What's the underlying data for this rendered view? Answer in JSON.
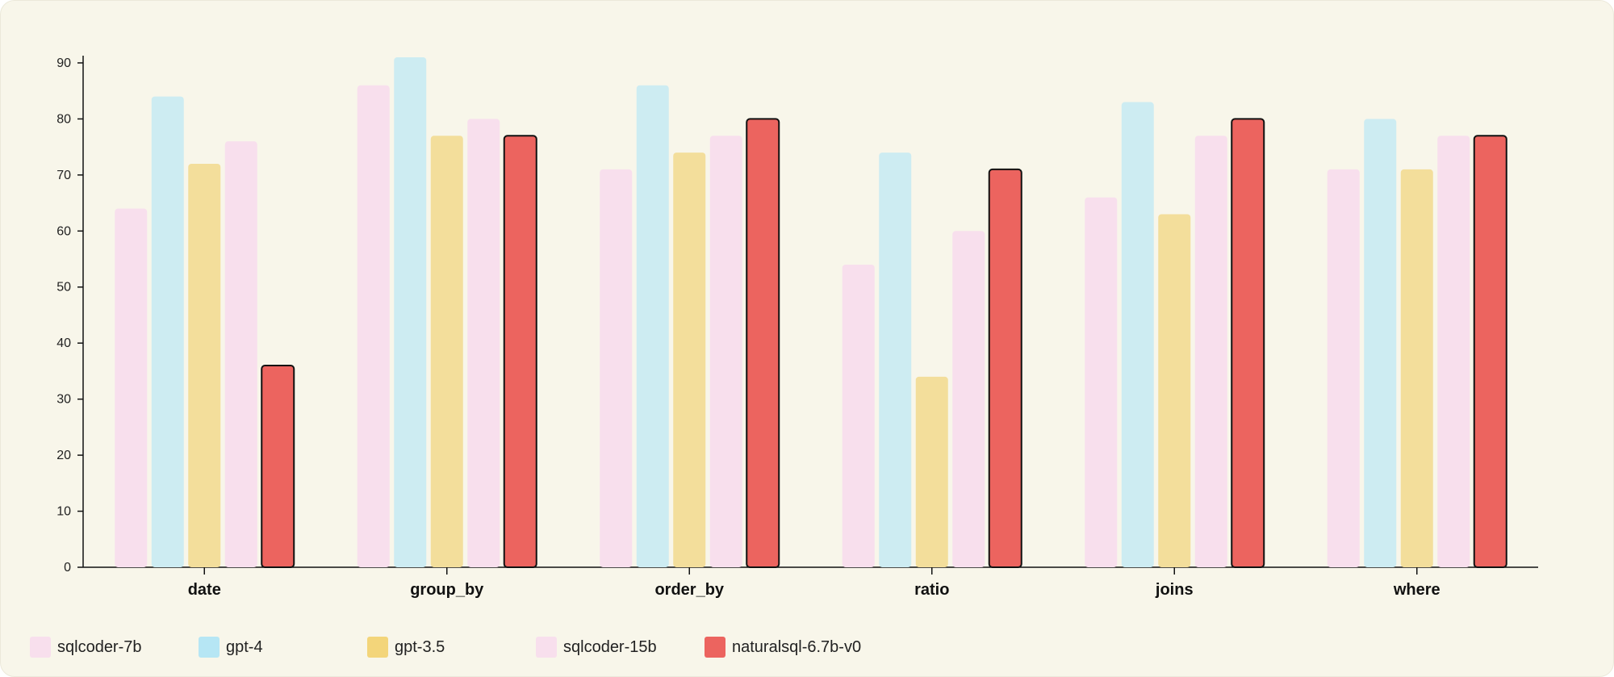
{
  "chart_data": {
    "type": "bar",
    "categories": [
      "date",
      "group_by",
      "order_by",
      "ratio",
      "joins",
      "where"
    ],
    "series": [
      {
        "name": "sqlcoder-7b",
        "color": "#f8dfed",
        "values": [
          64,
          86,
          71,
          54,
          66,
          71
        ]
      },
      {
        "name": "gpt-4",
        "color": "#cdecf2",
        "values": [
          84,
          91,
          86,
          74,
          83,
          80
        ]
      },
      {
        "name": "gpt-3.5",
        "color": "#f3de9b",
        "values": [
          72,
          77,
          74,
          34,
          63,
          71
        ]
      },
      {
        "name": "sqlcoder-15b",
        "color": "#f8dfed",
        "values": [
          76,
          80,
          77,
          60,
          77,
          77
        ]
      },
      {
        "name": "naturalsql-6.7b-v0",
        "color": "#ec645f",
        "values": [
          36,
          77,
          80,
          71,
          80,
          77
        ]
      }
    ],
    "legend_swatch_colors": [
      "#f8dfed",
      "#b6e6f4",
      "#f3d57a",
      "#f8dfed",
      "#ec645f"
    ],
    "y_ticks": [
      "0",
      "10",
      "20",
      "30",
      "40",
      "50",
      "60",
      "70",
      "80",
      "90"
    ],
    "ylim": [
      0,
      91
    ],
    "legend_position": "bottom-left",
    "grid": false
  }
}
